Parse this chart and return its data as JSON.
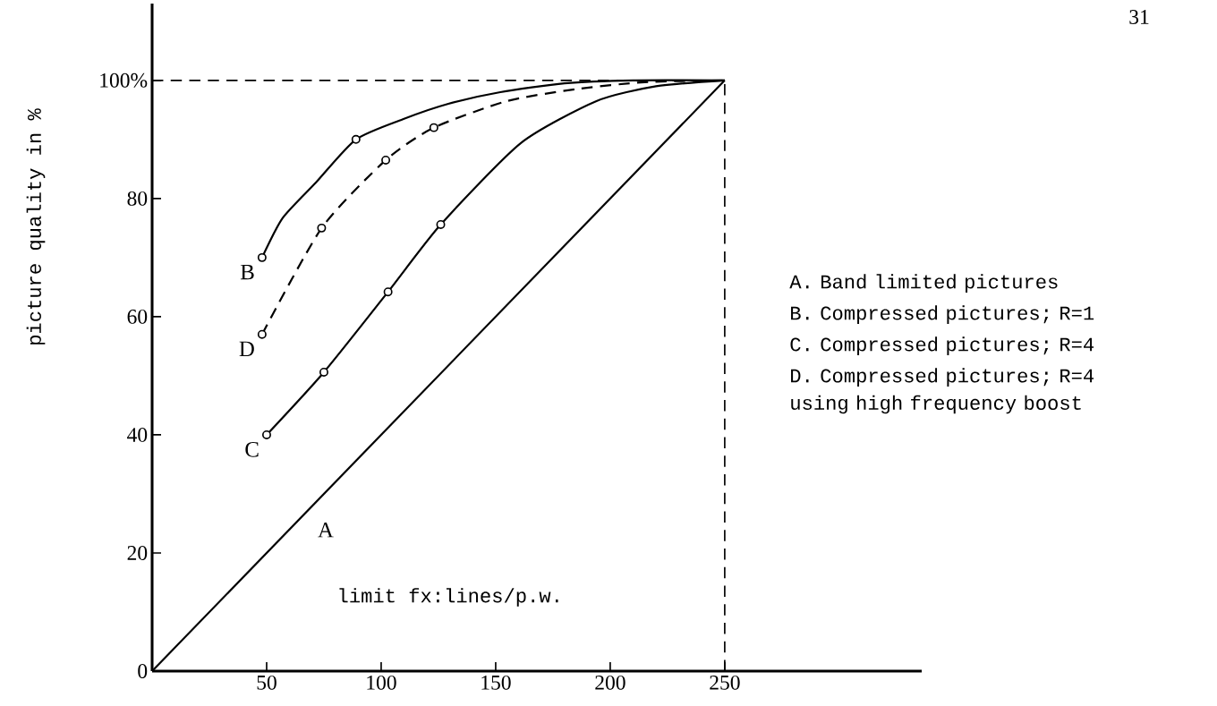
{
  "chart_data": {
    "type": "line",
    "xlabel": "limit fx:lines/p.w.",
    "ylabel": "picture quality in %",
    "xlim": [
      0,
      336
    ],
    "ylim": [
      0,
      113
    ],
    "xticks": [
      50,
      100,
      150,
      200,
      250
    ],
    "yticks": [
      0,
      20,
      40,
      60,
      80,
      {
        "value": 100,
        "label": "100%"
      }
    ],
    "ref_lines": [
      {
        "axis": "y",
        "value": 100,
        "line_style": "dashed"
      },
      {
        "axis": "x",
        "value": 250,
        "line_style": "dashed"
      }
    ],
    "series": [
      {
        "name": "A",
        "color": "#000000",
        "line_style": "solid",
        "marker": "none",
        "x": [
          0,
          250
        ],
        "values": [
          0,
          100
        ]
      },
      {
        "name": "B",
        "color": "#000000",
        "line_style": "solid",
        "marker": "none",
        "x": [
          48,
          57,
          71.5,
          89,
          110,
          129,
          152,
          180,
          210,
          250
        ],
        "values": [
          70,
          76.7,
          82.7,
          90,
          93.5,
          96,
          98,
          99.5,
          100,
          100
        ]
      },
      {
        "name": "C",
        "color": "#000000",
        "line_style": "solid",
        "marker": "none",
        "x": [
          50,
          75,
          103,
          126,
          161,
          194,
          220,
          250
        ],
        "values": [
          40,
          50.6,
          64.2,
          75.6,
          89.4,
          96.5,
          99,
          100
        ]
      },
      {
        "name": "D",
        "color": "#000000",
        "line_style": "dashed",
        "marker": "none",
        "x": [
          48,
          74,
          102,
          123,
          155,
          185,
          215,
          250
        ],
        "values": [
          57,
          75,
          86.5,
          92,
          96.5,
          98.5,
          99.7,
          100
        ]
      },
      {
        "type": "scatter",
        "color": "#000000",
        "marker": "circle",
        "x": [
          48,
          89
        ],
        "values": [
          70,
          90
        ]
      },
      {
        "type": "scatter",
        "color": "#000000",
        "marker": "circle",
        "x": [
          50,
          75,
          103,
          126
        ],
        "values": [
          40,
          50.6,
          64.2,
          75.6
        ]
      },
      {
        "type": "scatter",
        "color": "#000000",
        "marker": "circle",
        "x": [
          48,
          74,
          102,
          123
        ],
        "values": [
          57,
          75,
          86.5,
          92
        ]
      }
    ],
    "annotations": [
      "A. Band limited pictures",
      "B. Compressed pictures; R=1",
      "C. Compressed pictures; R=4",
      "D. Compressed pictures; R=4 using high frequency boost",
      "31"
    ]
  }
}
